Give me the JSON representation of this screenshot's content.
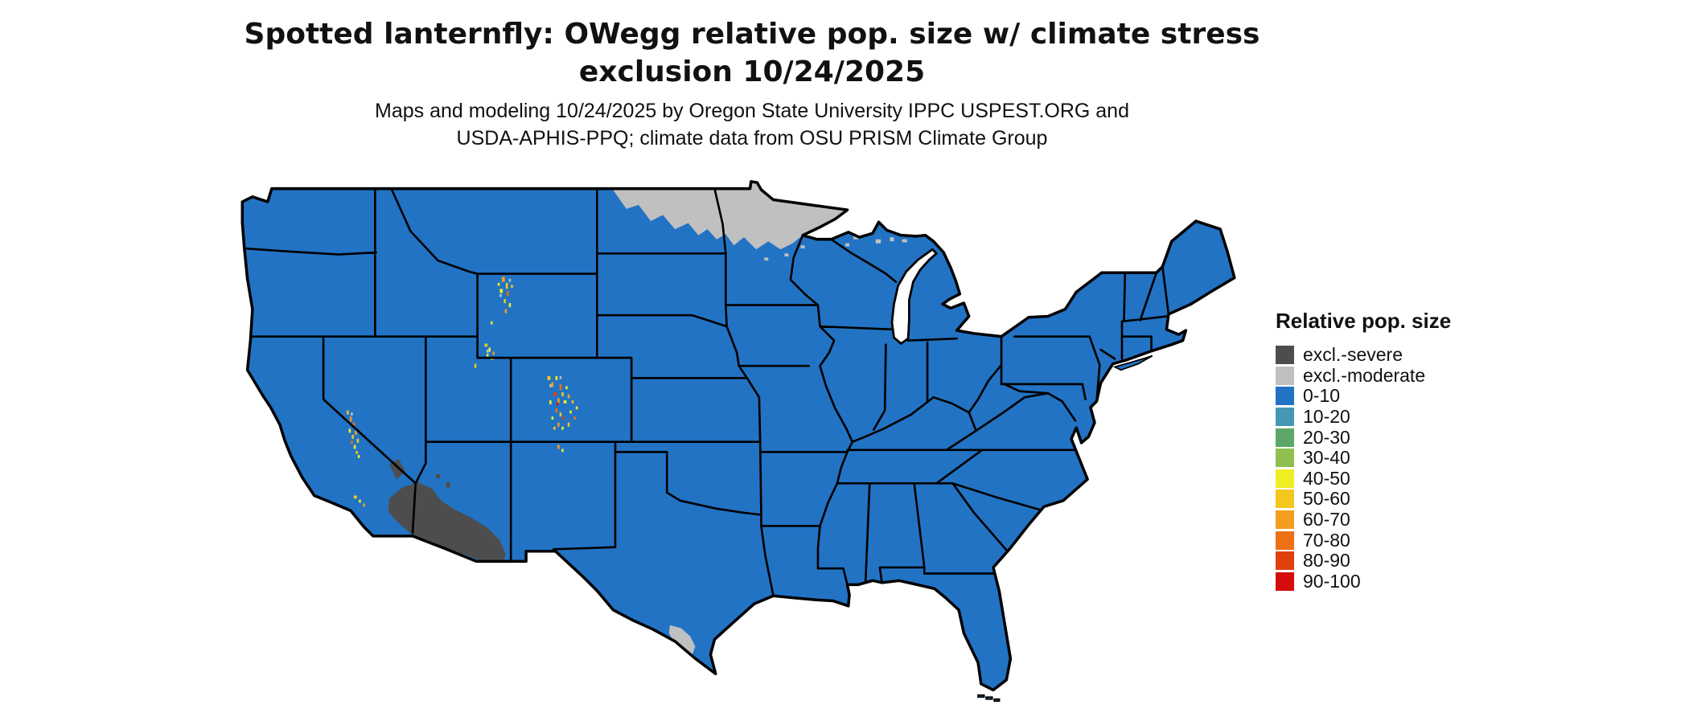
{
  "header": {
    "title_line1": "Spotted lanternfly: OWegg relative pop. size w/ climate stress",
    "title_line2": "exclusion 10/24/2025",
    "subtitle_line1": "Maps and modeling 10/24/2025 by Oregon State University IPPC USPEST.ORG and",
    "subtitle_line2": "USDA-APHIS-PPQ; climate data from OSU PRISM Climate Group"
  },
  "legend": {
    "title": "Relative pop. size",
    "items": [
      {
        "label": "excl.-severe",
        "color": "#4D4D4D"
      },
      {
        "label": "excl.-moderate",
        "color": "#C0C0C0"
      },
      {
        "label": "0-10",
        "color": "#2273C4"
      },
      {
        "label": "10-20",
        "color": "#4497B5"
      },
      {
        "label": "20-30",
        "color": "#5CA765"
      },
      {
        "label": "30-40",
        "color": "#8FC04F"
      },
      {
        "label": "40-50",
        "color": "#F0EE23"
      },
      {
        "label": "50-60",
        "color": "#F4C71F"
      },
      {
        "label": "60-70",
        "color": "#F59D1E"
      },
      {
        "label": "70-80",
        "color": "#EC7014"
      },
      {
        "label": "80-90",
        "color": "#E0400E"
      },
      {
        "label": "90-100",
        "color": "#D60C0C"
      }
    ]
  },
  "colors": {
    "background": "#FFFFFF",
    "map_border": "#000000",
    "water": "#FFFFFF"
  }
}
